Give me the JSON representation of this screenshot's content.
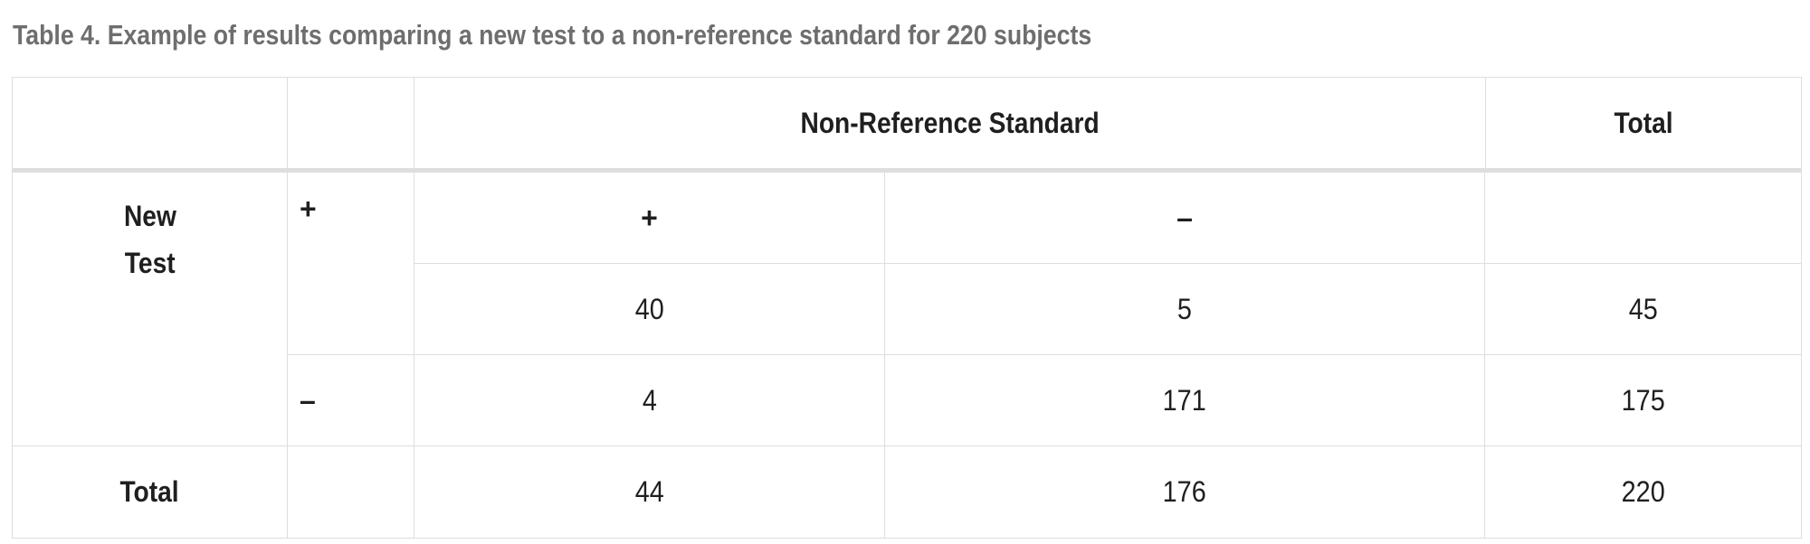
{
  "caption": "Table 4. Example of results comparing a new test to a non-reference standard for 220 subjects",
  "header": {
    "corner": "",
    "corner_sign": "",
    "column_group": "Non-Reference Standard",
    "total": "Total"
  },
  "column_signs": {
    "pos": "+",
    "neg": "–",
    "total": ""
  },
  "row_label": {
    "line1": "New",
    "line2": "Test"
  },
  "rows": {
    "positive": {
      "sign": "+",
      "a": "40",
      "b": "5",
      "total": "45"
    },
    "negative": {
      "sign": "–",
      "c": "4",
      "d": "171",
      "total": "175"
    },
    "total": {
      "label": "Total",
      "sign": "",
      "col1": "44",
      "col2": "176",
      "grand": "220"
    }
  }
}
